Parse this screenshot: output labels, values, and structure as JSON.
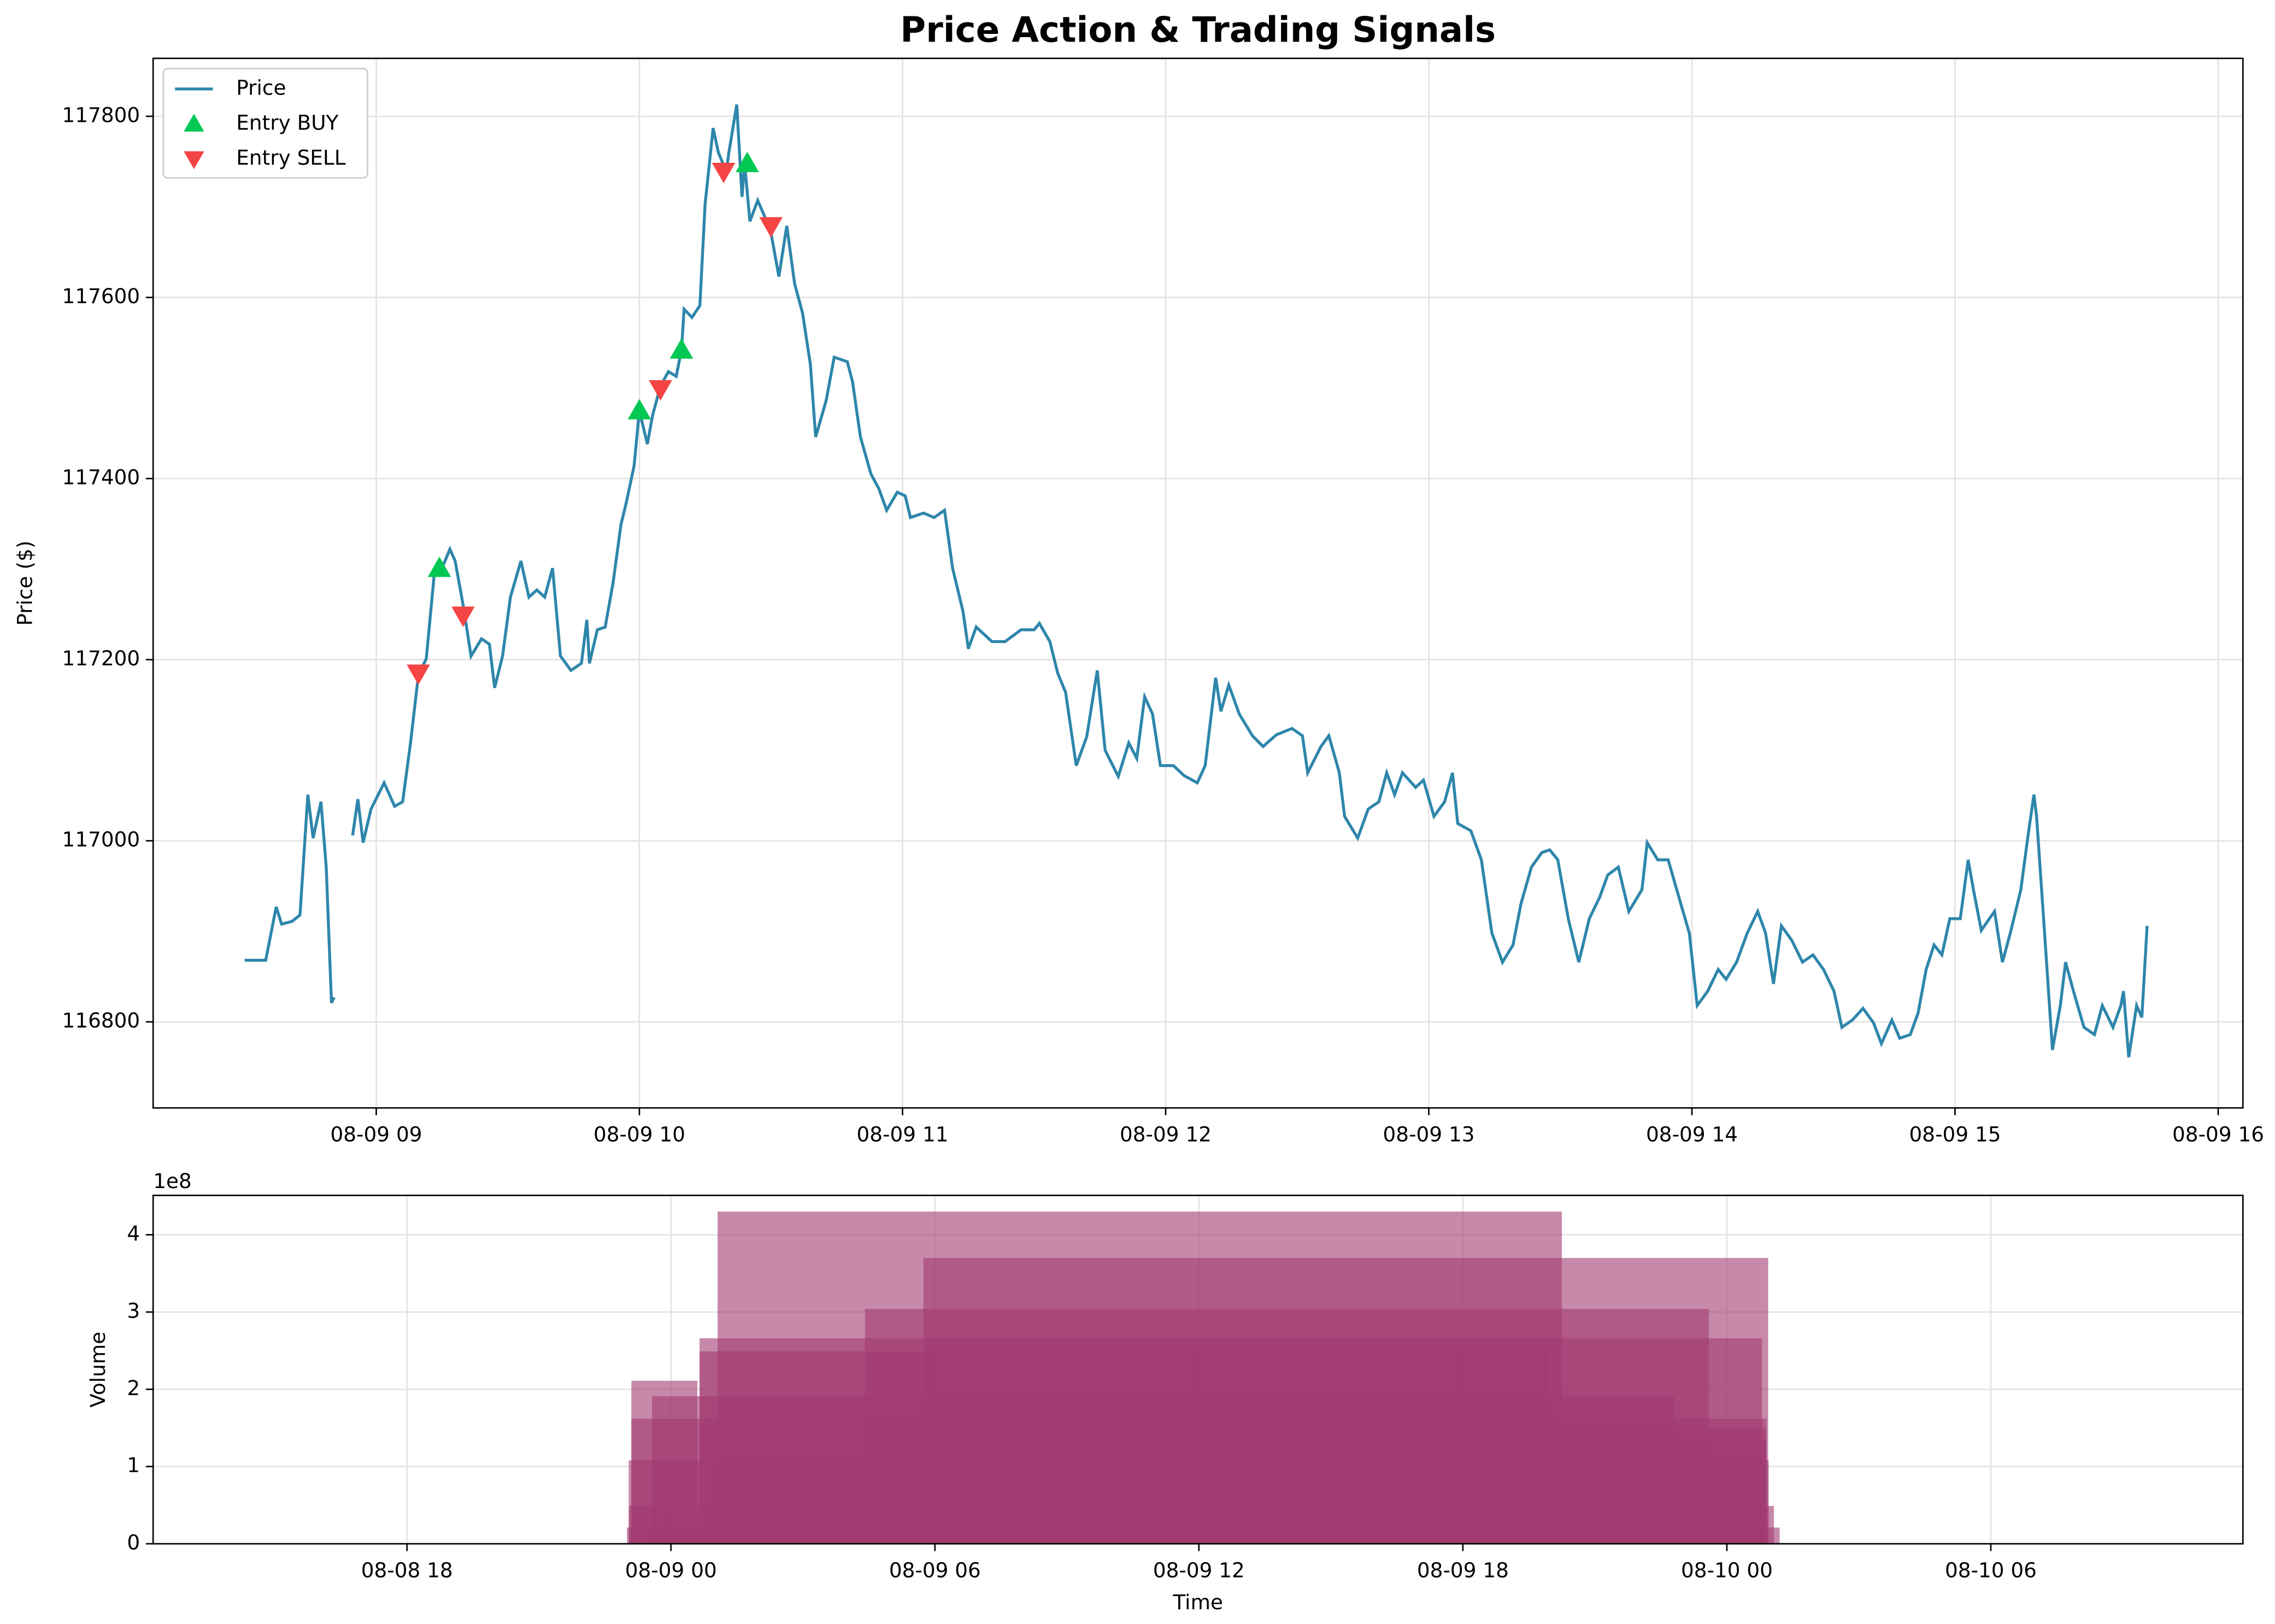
{
  "chart_data": [
    {
      "type": "line",
      "title": "Price Action & Trading Signals",
      "ylabel": "Price ($)",
      "xlim": [
        8.152,
        16.094
      ],
      "ylim": [
        116705,
        117864
      ],
      "grid": true,
      "legend": "upper left",
      "xticks": [
        {
          "value": 9,
          "label": "08-09 09"
        },
        {
          "value": 10,
          "label": "08-09 10"
        },
        {
          "value": 11,
          "label": "08-09 11"
        },
        {
          "value": 12,
          "label": "08-09 12"
        },
        {
          "value": 13,
          "label": "08-09 13"
        },
        {
          "value": 14,
          "label": "08-09 14"
        },
        {
          "value": 15,
          "label": "08-09 15"
        },
        {
          "value": 16,
          "label": "08-09 16"
        }
      ],
      "yticks": [
        116800,
        117000,
        117200,
        117400,
        117600,
        117800
      ],
      "series": [
        {
          "name": "Price",
          "color": "#2e86ab",
          "marker": "line",
          "x": [
            8.5,
            8.58,
            8.62,
            8.64,
            8.68,
            8.71,
            8.74,
            8.76,
            8.79,
            8.81,
            8.83,
            8.84,
            8.87,
            8.91,
            8.93,
            8.95,
            8.98,
            9.03,
            9.07,
            9.1,
            9.13,
            9.16,
            9.19,
            9.22,
            9.25,
            9.28,
            9.3,
            9.33,
            9.36,
            9.4,
            9.43,
            9.45,
            9.48,
            9.51,
            9.55,
            9.58,
            9.61,
            9.64,
            9.67,
            9.7,
            9.74,
            9.78,
            9.8,
            9.81,
            9.84,
            9.87,
            9.9,
            9.93,
            9.95,
            9.98,
            10,
            10.03,
            10.05,
            10.08,
            10.11,
            10.14,
            10.16,
            10.17,
            10.2,
            10.23,
            10.25,
            10.28,
            10.3,
            10.33,
            10.34,
            10.37,
            10.39,
            10.4,
            10.42,
            10.45,
            10.48,
            10.5,
            10.53,
            10.56,
            10.59,
            10.62,
            10.65,
            10.67,
            10.71,
            10.74,
            10.79,
            10.81,
            10.84,
            10.88,
            10.91,
            10.94,
            10.98,
            11.01,
            11.03,
            11.08,
            11.12,
            11.16,
            11.19,
            11.23,
            11.25,
            11.28,
            11.34,
            11.39,
            11.45,
            11.5,
            11.52,
            11.56,
            11.59,
            11.62,
            11.66,
            11.7,
            11.74,
            11.77,
            11.82,
            11.86,
            11.89,
            11.92,
            11.95,
            11.98,
            12.03,
            12.07,
            12.12,
            12.15,
            12.19,
            12.21,
            12.24,
            12.28,
            12.33,
            12.37,
            12.42,
            12.48,
            12.52,
            12.54,
            12.59,
            12.62,
            12.66,
            12.68,
            12.73,
            12.77,
            12.81,
            12.84,
            12.87,
            12.9,
            12.95,
            12.98,
            13.02,
            13.06,
            13.09,
            13.11,
            13.16,
            13.2,
            13.24,
            13.28,
            13.32,
            13.35,
            13.39,
            13.43,
            13.46,
            13.49,
            13.53,
            13.57,
            13.61,
            13.65,
            13.68,
            13.72,
            13.76,
            13.81,
            13.83,
            13.87,
            13.91,
            13.95,
            13.99,
            14.02,
            14.06,
            14.1,
            14.13,
            14.17,
            14.21,
            14.25,
            14.28,
            14.31,
            14.34,
            14.38,
            14.42,
            14.46,
            14.5,
            14.54,
            14.57,
            14.61,
            14.65,
            14.69,
            14.72,
            14.76,
            14.79,
            14.83,
            14.86,
            14.89,
            14.92,
            14.95,
            14.98,
            15.02,
            15.05,
            15.07,
            15.1,
            15.13,
            15.15,
            15.18,
            15.21,
            15.25,
            15.28,
            15.3,
            15.31,
            15.34,
            15.37,
            15.4,
            15.42,
            15.45,
            15.49,
            15.53,
            15.56,
            15.6,
            15.63,
            15.64,
            15.66,
            15.69,
            15.71,
            15.73
          ],
          "values": [
            116868,
            116868,
            116927,
            116908,
            116911,
            116918,
            117051,
            117003,
            117043,
            116971,
            116821,
            116827,
            null,
            117006,
            117046,
            116998,
            117035,
            117064,
            117038,
            117043,
            117108,
            117183,
            117201,
            117293,
            117301,
            117322,
            117309,
            117260,
            117204,
            117223,
            117217,
            117169,
            117204,
            117269,
            117309,
            117269,
            117277,
            117269,
            117301,
            117204,
            117188,
            117196,
            117244,
            117196,
            117233,
            117236,
            117285,
            117349,
            117373,
            117414,
            117475,
            117438,
            117470,
            117502,
            117518,
            117513,
            117542,
            117587,
            117578,
            117591,
            117703,
            117787,
            117760,
            117739,
            117760,
            117813,
            117711,
            117748,
            117684,
            117707,
            117687,
            117671,
            117623,
            117679,
            117615,
            117583,
            117526,
            117446,
            117486,
            117534,
            117529,
            117507,
            117446,
            117405,
            117389,
            117365,
            117385,
            117381,
            117357,
            117362,
            117357,
            117365,
            117301,
            117253,
            117212,
            117236,
            117220,
            117220,
            117233,
            117233,
            117240,
            117220,
            117185,
            117164,
            117083,
            117115,
            117188,
            117100,
            117071,
            117108,
            117091,
            117159,
            117140,
            117083,
            117083,
            117072,
            117064,
            117083,
            117180,
            117143,
            117172,
            117140,
            117116,
            117104,
            117117,
            117124,
            117116,
            117075,
            117104,
            117116,
            117075,
            117027,
            117003,
            117035,
            117043,
            117075,
            117051,
            117075,
            117059,
            117067,
            117027,
            117043,
            117075,
            117019,
            117011,
            116979,
            116898,
            116866,
            116885,
            116930,
            116971,
            116987,
            116990,
            116979,
            116914,
            116866,
            116914,
            116938,
            116962,
            116971,
            116922,
            116946,
            116998,
            116979,
            116979,
            116938,
            116898,
            116818,
            116834,
            116858,
            116847,
            116866,
            116898,
            116922,
            116898,
            116842,
            116906,
            116890,
            116866,
            116874,
            116858,
            116834,
            116794,
            116802,
            116815,
            116799,
            116776,
            116802,
            116782,
            116786,
            116810,
            116858,
            116885,
            116874,
            116914,
            116914,
            116979,
            116946,
            116901,
            116914,
            116922,
            116866,
            116898,
            116946,
            117011,
            117051,
            117027,
            116898,
            116769,
            116818,
            116866,
            116834,
            116794,
            116786,
            116818,
            116794,
            116818,
            116834,
            116761,
            116818,
            116805,
            116906
          ]
        },
        {
          "name": "Entry BUY",
          "color": "#00c853",
          "marker": "triangle-up",
          "x": [
            9.24,
            10.0,
            10.16,
            10.41
          ],
          "values": [
            117301,
            117475,
            117542,
            117748
          ]
        },
        {
          "name": "Entry SELL",
          "color": "#f44444",
          "marker": "triangle-down",
          "x": [
            9.16,
            9.33,
            10.08,
            10.32,
            10.5
          ],
          "values": [
            117185,
            117249,
            117499,
            117739,
            117679
          ]
        }
      ]
    },
    {
      "type": "bar",
      "xlabel": "Time",
      "ylabel": "Volume",
      "y_offset_label": "1e8",
      "color": "#a23b72",
      "opacity": 0.6,
      "grid": true,
      "xlim": [
        12.23,
        59.73
      ],
      "ylim": [
        0,
        451000000
      ],
      "xticks": [
        {
          "value": 18,
          "label": "08-08 18"
        },
        {
          "value": 24,
          "label": "08-09 00"
        },
        {
          "value": 30,
          "label": "08-09 06"
        },
        {
          "value": 36,
          "label": "08-09 12"
        },
        {
          "value": 42,
          "label": "08-09 18"
        },
        {
          "value": 48,
          "label": "08-10 00"
        },
        {
          "value": 54,
          "label": "08-10 06"
        }
      ],
      "yticks": [
        0,
        {
          "value": 100000000,
          "label": "1"
        },
        {
          "value": 200000000,
          "label": "2"
        },
        {
          "value": 300000000,
          "label": "3"
        },
        {
          "value": 400000000,
          "label": "4"
        }
      ],
      "x": [
        25.06,
        29.74,
        28.41,
        23.1,
        24.65,
        24.65,
        23.57,
        23.1,
        44.28,
        46.85,
        23.04,
        23.04,
        23.0
      ],
      "x_end": [
        44.25,
        48.94,
        47.59,
        24.6,
        48.8,
        43.95,
        46.8,
        48.9,
        48.9,
        48.9,
        48.95,
        49.07,
        49.2
      ],
      "values": [
        430000000,
        370000000,
        304000000,
        211000000,
        266000000,
        249000000,
        191000000,
        162000000,
        149000000,
        134000000,
        108000000,
        49000000,
        21000000
      ]
    }
  ]
}
